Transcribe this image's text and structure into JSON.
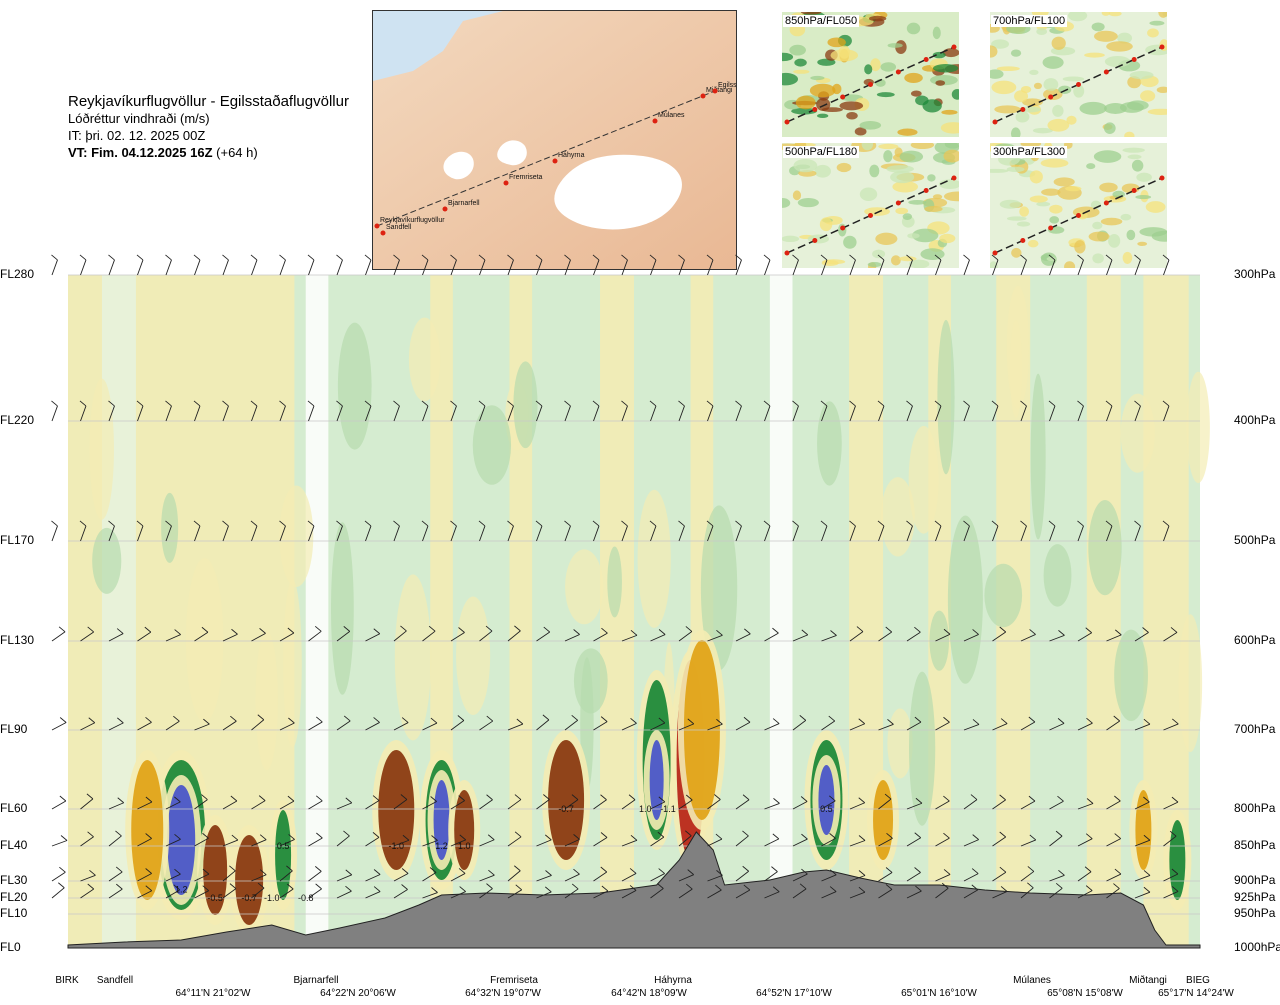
{
  "header": {
    "route": "Reykjavíkurflugvöllur - Egilsstaðaflugvöllur",
    "subtitle": "Lóðréttur vindhraði (m/s)",
    "issue_time": "IT: þri. 02. 12. 2025 00Z",
    "valid_time": "VT: Fim. 04.12.2025 16Z",
    "lead": "(+64 h)"
  },
  "map": {
    "stations": [
      "Reykjavíkurflugvöllur",
      "Sandfell",
      "Bjarnarfell",
      "Fremriseta",
      "Háhyrna",
      "Múlanes",
      "Miðtangi",
      "Egilss"
    ]
  },
  "panels": [
    {
      "label": "850hPa/FL050"
    },
    {
      "label": "700hPa/FL100"
    },
    {
      "label": "500hPa/FL180"
    },
    {
      "label": "300hPa/FL300"
    }
  ],
  "chart_data": {
    "type": "heatmap",
    "title": "Lóðréttur vindhraði (m/s)",
    "y_left_ticks": [
      "FL0",
      "FL10",
      "FL20",
      "FL30",
      "FL40",
      "FL60",
      "FL90",
      "FL130",
      "FL170",
      "FL220",
      "FL280"
    ],
    "y_right_ticks": [
      "1000hPa",
      "950hPa",
      "925hPa",
      "900hPa",
      "850hPa",
      "800hPa",
      "700hPa",
      "600hPa",
      "500hPa",
      "400hPa",
      "300hPa"
    ],
    "x_stations": [
      "BIRK",
      "Sandfell",
      "Bjarnarfell",
      "Fremriseta",
      "Háhyrna",
      "Múlanes",
      "Miðtangi",
      "BIEG"
    ],
    "x_coords": [
      "64°11'N 21°02'W",
      "64°22'N 20°06'W",
      "64°32'N 19°07'W",
      "64°42'N 18°09'W",
      "64°52'N 17°10'W",
      "65°01'N 16°10'W",
      "65°08'N 15°08'W",
      "65°17'N 14°24'W"
    ],
    "contour_labels": [
      {
        "text": "1.2",
        "x": 0.1,
        "fl": 25
      },
      {
        "text": "-0.5",
        "x": 0.13,
        "fl": 20
      },
      {
        "text": "-0.7",
        "x": 0.16,
        "fl": 20
      },
      {
        "text": "-1.0",
        "x": 0.18,
        "fl": 20
      },
      {
        "text": "-0.8",
        "x": 0.21,
        "fl": 20
      },
      {
        "text": "0.5",
        "x": 0.19,
        "fl": 40
      },
      {
        "text": "-1.0",
        "x": 0.29,
        "fl": 40
      },
      {
        "text": "1.2",
        "x": 0.33,
        "fl": 40
      },
      {
        "text": "1.0",
        "x": 0.35,
        "fl": 40
      },
      {
        "text": "-0.7",
        "x": 0.44,
        "fl": 60
      },
      {
        "text": "1.0",
        "x": 0.51,
        "fl": 60
      },
      {
        "text": "-1.1",
        "x": 0.53,
        "fl": 60
      },
      {
        "text": "0.5",
        "x": 0.67,
        "fl": 60
      }
    ]
  }
}
